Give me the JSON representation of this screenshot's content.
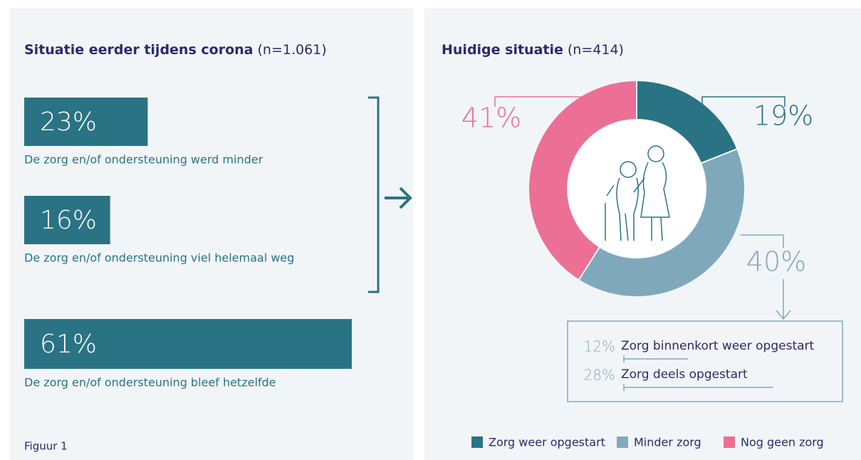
{
  "chart_data": [
    {
      "type": "bar",
      "title": "Situatie eerder tijdens corona",
      "subtitle": "(n=1.061)",
      "categories": [
        "De zorg en/of ondersteuning werd minder",
        "De zorg en/of ondersteuning viel helemaal weg",
        "De zorg en/of ondersteuning bleef hetzelfde"
      ],
      "values": [
        23,
        16,
        61
      ],
      "value_labels": [
        "23%",
        "16%",
        "61%"
      ],
      "color": "#2a7384"
    },
    {
      "type": "donut",
      "title": "Huidige situatie",
      "subtitle": "(n=414)",
      "categories": [
        "Zorg weer opgestart",
        "Minder zorg",
        "Nog geen zorg"
      ],
      "values": [
        19,
        40,
        41
      ],
      "value_labels": [
        "19%",
        "40%",
        "41%"
      ],
      "colors": [
        "#2a7384",
        "#7fa9bb",
        "#ec6f96"
      ],
      "breakdown": {
        "categories": [
          "Zorg binnenkort weer opgestart",
          "Zorg deels opgestart"
        ],
        "values": [
          12,
          28
        ],
        "value_labels": [
          "12%",
          "28%"
        ]
      }
    }
  ],
  "caption": "Figuur 1"
}
